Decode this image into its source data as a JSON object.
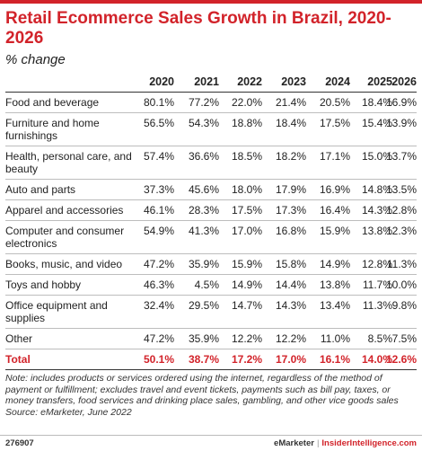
{
  "header": {
    "title": "Retail Ecommerce Sales Growth in Brazil, 2020-2026",
    "subtitle": "% change"
  },
  "chart_data": {
    "type": "table",
    "title": "Retail Ecommerce Sales Growth in Brazil, 2020-2026",
    "subtitle": "% change",
    "columns": [
      "2020",
      "2021",
      "2022",
      "2023",
      "2024",
      "2025",
      "2026"
    ],
    "rows": [
      {
        "label": "Food and beverage",
        "values": [
          "80.1%",
          "77.2%",
          "22.0%",
          "21.4%",
          "20.5%",
          "18.4%",
          "16.9%"
        ]
      },
      {
        "label": "Furniture and home furnishings",
        "values": [
          "56.5%",
          "54.3%",
          "18.8%",
          "18.4%",
          "17.5%",
          "15.4%",
          "13.9%"
        ]
      },
      {
        "label": "Health, personal care, and beauty",
        "values": [
          "57.4%",
          "36.6%",
          "18.5%",
          "18.2%",
          "17.1%",
          "15.0%",
          "13.7%"
        ]
      },
      {
        "label": "Auto and parts",
        "values": [
          "37.3%",
          "45.6%",
          "18.0%",
          "17.9%",
          "16.9%",
          "14.8%",
          "13.5%"
        ]
      },
      {
        "label": "Apparel and accessories",
        "values": [
          "46.1%",
          "28.3%",
          "17.5%",
          "17.3%",
          "16.4%",
          "14.3%",
          "12.8%"
        ]
      },
      {
        "label": "Computer and consumer electronics",
        "values": [
          "54.9%",
          "41.3%",
          "17.0%",
          "16.8%",
          "15.9%",
          "13.8%",
          "12.3%"
        ]
      },
      {
        "label": "Books, music, and video",
        "values": [
          "47.2%",
          "35.9%",
          "15.9%",
          "15.8%",
          "14.9%",
          "12.8%",
          "11.3%"
        ]
      },
      {
        "label": "Toys and hobby",
        "values": [
          "46.3%",
          "4.5%",
          "14.9%",
          "14.4%",
          "13.8%",
          "11.7%",
          "10.0%"
        ]
      },
      {
        "label": "Office equipment and supplies",
        "values": [
          "32.4%",
          "29.5%",
          "14.7%",
          "14.3%",
          "13.4%",
          "11.3%",
          "9.8%"
        ]
      },
      {
        "label": "Other",
        "values": [
          "47.2%",
          "35.9%",
          "12.2%",
          "12.2%",
          "11.0%",
          "8.5%",
          "7.5%"
        ]
      }
    ],
    "total": {
      "label": "Total",
      "values": [
        "50.1%",
        "38.7%",
        "17.2%",
        "17.0%",
        "16.1%",
        "14.0%",
        "12.6%"
      ]
    }
  },
  "notes": {
    "note": "Note: includes products or services ordered using the internet, regardless of the method of payment or fulfillment; excludes travel and event tickets, payments such as bill pay, taxes, or money transfers, food services and drinking place sales, gambling, and other vice goods sales",
    "source": "Source: eMarketer, June 2022"
  },
  "footer": {
    "chart_id": "276907",
    "brand_left": "eMarketer",
    "separator": "|",
    "brand_right": "InsiderIntelligence.com"
  },
  "colors": {
    "accent": "#d2232a",
    "text": "#222222",
    "rule": "#bdbdbd"
  }
}
